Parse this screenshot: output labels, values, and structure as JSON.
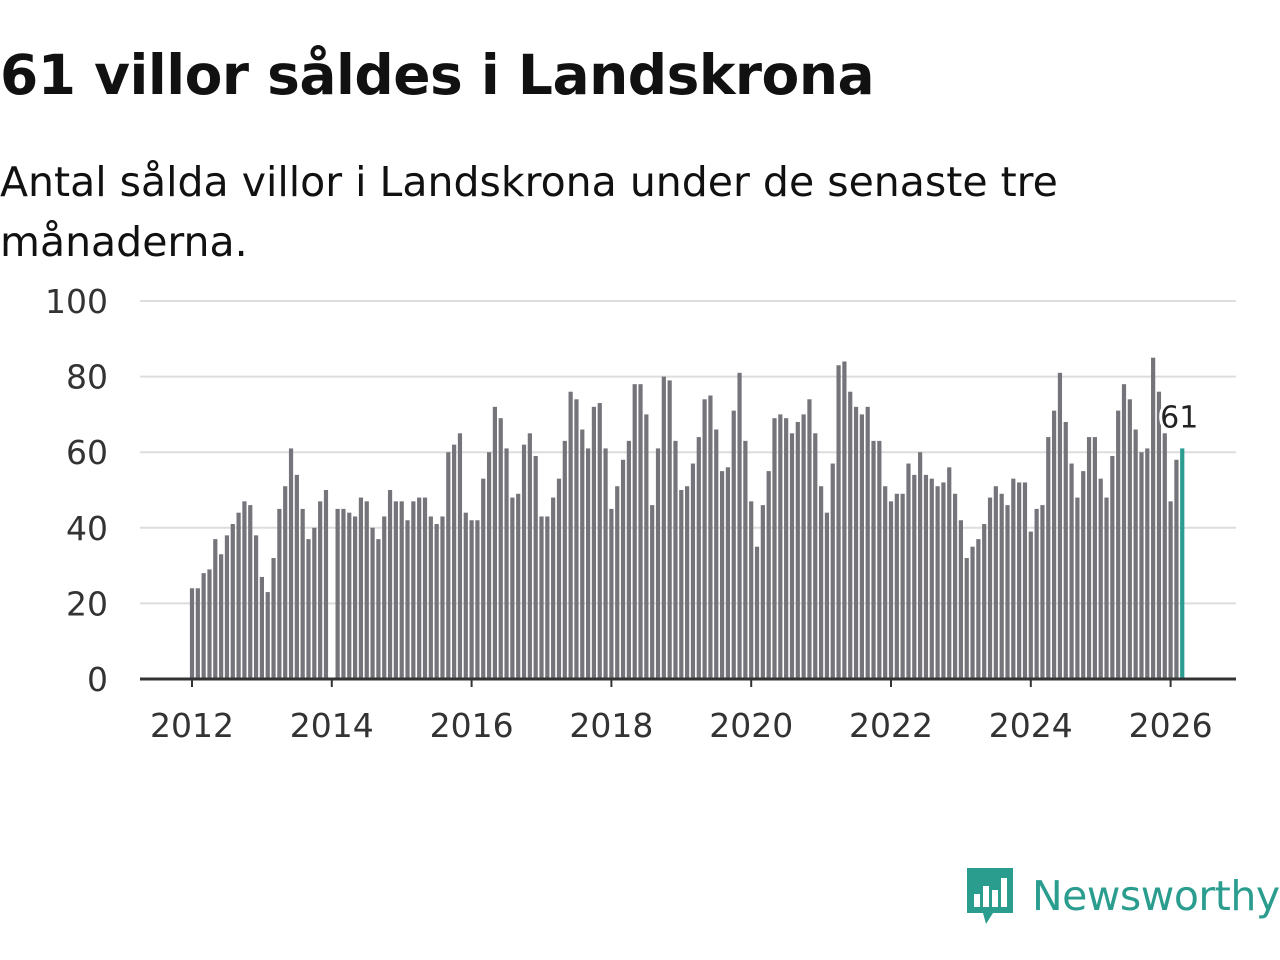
{
  "header": {
    "title": "61 villor såldes i Landskrona",
    "subtitle": "Antal sålda villor i Landskrona under de senaste tre månaderna."
  },
  "brand": {
    "name": "Newsworthy"
  },
  "colors": {
    "bar": "#75747a",
    "highlight": "#2a9d8f",
    "grid": "#dddddd",
    "axis": "#333333"
  },
  "chart_data": {
    "type": "bar",
    "title": "61 villor såldes i Landskrona",
    "xlabel": "",
    "ylabel": "",
    "ylim": [
      0,
      100
    ],
    "yticks": [
      0,
      20,
      40,
      60,
      80,
      100
    ],
    "xticks": [
      "2012",
      "2014",
      "2016",
      "2018",
      "2020",
      "2022",
      "2024",
      "2026"
    ],
    "x_start": "2012-01",
    "x_end": "2026-03",
    "grid": true,
    "highlight": {
      "date": "2026-03",
      "value": 61,
      "label": "61"
    },
    "series": [
      {
        "name": "Antal sålda villor",
        "start": "2012-01",
        "values": [
          24,
          24,
          28,
          29,
          37,
          33,
          38,
          41,
          44,
          47,
          46,
          38,
          27,
          23,
          32,
          45,
          51,
          61,
          54,
          45,
          37,
          40,
          47,
          50,
          null,
          45,
          45,
          44,
          43,
          48,
          47,
          40,
          37,
          43,
          50,
          47,
          47,
          42,
          47,
          48,
          48,
          43,
          41,
          43,
          60,
          62,
          65,
          44,
          42,
          42,
          53,
          60,
          72,
          69,
          61,
          48,
          49,
          62,
          65,
          59,
          43,
          43,
          48,
          53,
          63,
          76,
          74,
          66,
          61,
          72,
          73,
          61,
          45,
          51,
          58,
          63,
          78,
          78,
          70,
          46,
          61,
          80,
          79,
          63,
          50,
          51,
          57,
          64,
          74,
          75,
          66,
          55,
          56,
          71,
          81,
          63,
          47,
          35,
          46,
          55,
          69,
          70,
          69,
          65,
          68,
          70,
          74,
          65,
          51,
          44,
          57,
          83,
          84,
          76,
          72,
          70,
          72,
          63,
          63,
          51,
          47,
          49,
          49,
          57,
          54,
          60,
          54,
          53,
          51,
          52,
          56,
          49,
          42,
          32,
          35,
          37,
          41,
          48,
          51,
          49,
          46,
          53,
          52,
          52,
          39,
          45,
          46,
          64,
          71,
          81,
          68,
          57,
          48,
          55,
          64,
          64,
          53,
          48,
          59,
          71,
          78,
          74,
          66,
          60,
          61,
          85,
          76,
          65,
          47,
          58,
          61
        ]
      }
    ]
  }
}
